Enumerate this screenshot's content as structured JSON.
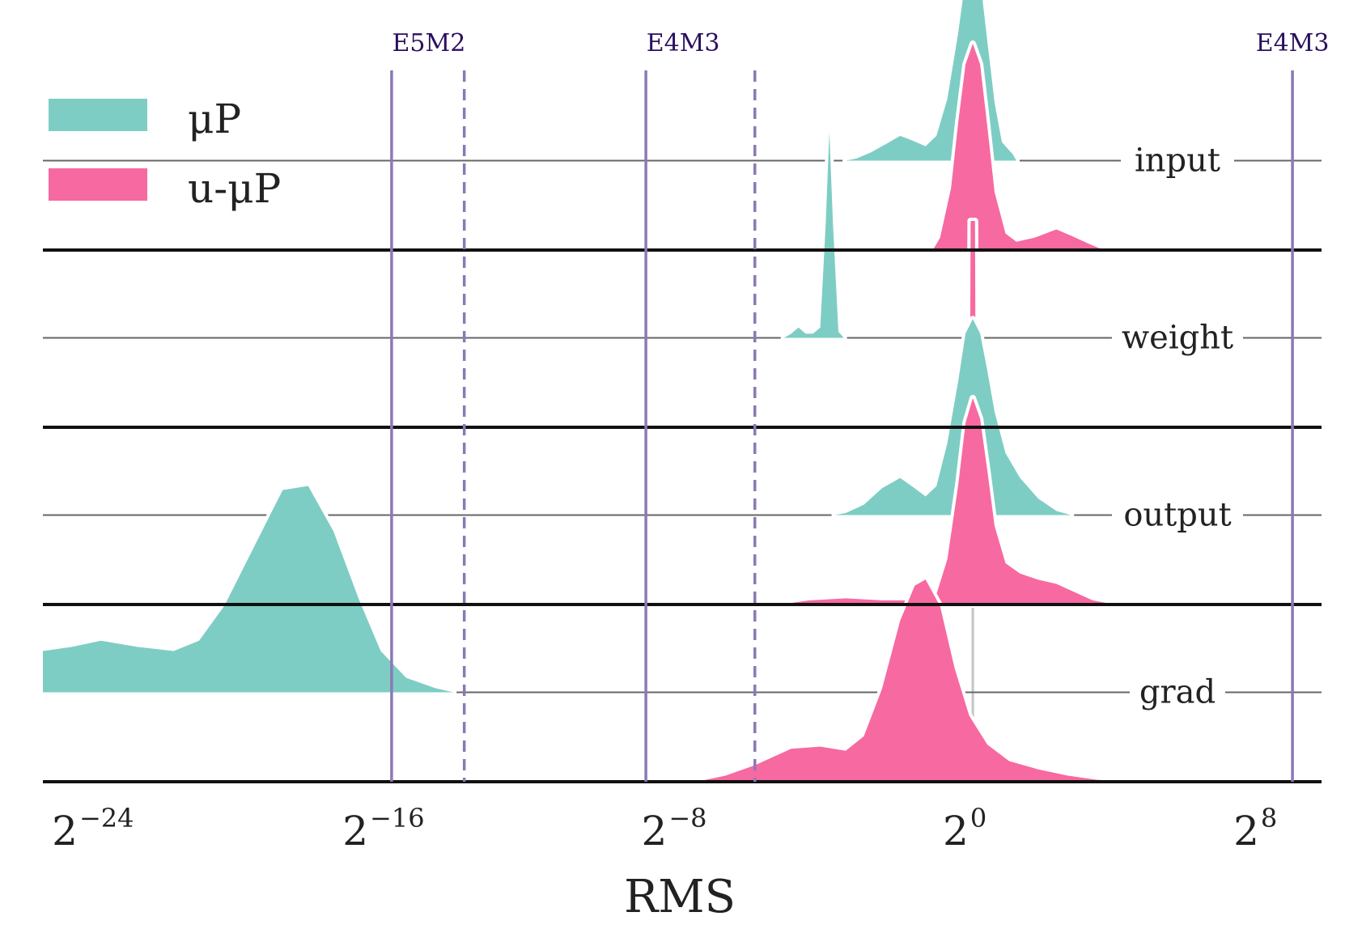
{
  "chart_data": {
    "type": "area",
    "title": "",
    "xlabel": "RMS",
    "ylabel": "",
    "x_scale": "log2",
    "xlim_log2": [
      -25.6,
      9.6
    ],
    "x_ticks": [
      {
        "base": "2",
        "exp": "−24",
        "log2": -24
      },
      {
        "base": "2",
        "exp": "−16",
        "log2": -16
      },
      {
        "base": "2",
        "exp": "−8",
        "log2": -8
      },
      {
        "base": "2",
        "exp": "0",
        "log2": 0
      },
      {
        "base": "2",
        "exp": "8",
        "log2": 8
      }
    ],
    "grid": false,
    "legend": {
      "placement": "top-left",
      "entries": [
        {
          "name": "μP",
          "color": "#7ecdc4"
        },
        {
          "name": "u-μP",
          "color": "#f769a1"
        }
      ]
    },
    "format_lines": {
      "color": "#8b79b6",
      "label_color": "#2b0f5e",
      "lines": [
        {
          "name": "E5M2",
          "log2": -16,
          "style": "solid",
          "label": "E5M2"
        },
        {
          "name": "E5M2-subnormal",
          "log2": -14,
          "style": "dashed",
          "label": ""
        },
        {
          "name": "E4M3",
          "log2": -9,
          "style": "solid",
          "label": "E4M3"
        },
        {
          "name": "E4M3-subnormal",
          "log2": -6,
          "style": "dashed",
          "label": ""
        },
        {
          "name": "E4M3-max",
          "log2": 8.8,
          "style": "solid",
          "label": "E4M3"
        }
      ]
    },
    "rows": [
      {
        "label": "input",
        "series": [
          {
            "name": "μP",
            "points": [
              [
                -3.5,
                0.0
              ],
              [
                -3.2,
                0.01
              ],
              [
                -2.8,
                0.04
              ],
              [
                -2.3,
                0.09
              ],
              [
                -2.0,
                0.12
              ],
              [
                -1.7,
                0.1
              ],
              [
                -1.3,
                0.07
              ],
              [
                -1.0,
                0.12
              ],
              [
                -0.7,
                0.3
              ],
              [
                -0.4,
                0.62
              ],
              [
                -0.2,
                0.88
              ],
              [
                0.0,
                0.98
              ],
              [
                0.2,
                0.88
              ],
              [
                0.4,
                0.58
              ],
              [
                0.6,
                0.28
              ],
              [
                0.8,
                0.09
              ],
              [
                1.1,
                0.03
              ],
              [
                1.2,
                0.0
              ]
            ]
          },
          {
            "name": "u-μP",
            "points": [
              [
                -1.1,
                0.0
              ],
              [
                -0.9,
                0.06
              ],
              [
                -0.6,
                0.3
              ],
              [
                -0.4,
                0.62
              ],
              [
                -0.2,
                0.9
              ],
              [
                0.0,
                1.0
              ],
              [
                0.2,
                0.9
              ],
              [
                0.4,
                0.6
              ],
              [
                0.6,
                0.28
              ],
              [
                0.9,
                0.08
              ],
              [
                1.2,
                0.04
              ],
              [
                1.7,
                0.06
              ],
              [
                2.3,
                0.1
              ],
              [
                2.7,
                0.07
              ],
              [
                3.2,
                0.03
              ],
              [
                3.6,
                0.0
              ]
            ]
          }
        ]
      },
      {
        "label": "weight",
        "series": [
          {
            "name": "μP",
            "points": [
              [
                -5.2,
                0.0
              ],
              [
                -5.0,
                0.02
              ],
              [
                -4.8,
                0.05
              ],
              [
                -4.6,
                0.02
              ],
              [
                -4.4,
                0.02
              ],
              [
                -4.2,
                0.05
              ],
              [
                -4.05,
                0.55
              ],
              [
                -3.95,
                1.0
              ],
              [
                -3.85,
                0.55
              ],
              [
                -3.7,
                0.03
              ],
              [
                -3.55,
                0.0
              ]
            ]
          },
          {
            "name": "u-μP",
            "points": [
              [
                -0.08,
                0.0
              ],
              [
                -0.06,
                1.0
              ],
              [
                0.06,
                1.0
              ],
              [
                0.08,
                0.0
              ]
            ]
          }
        ]
      },
      {
        "label": "output",
        "series": [
          {
            "name": "μP",
            "points": [
              [
                -3.8,
                0.0
              ],
              [
                -3.5,
                0.01
              ],
              [
                -3.0,
                0.05
              ],
              [
                -2.5,
                0.13
              ],
              [
                -2.0,
                0.18
              ],
              [
                -1.6,
                0.13
              ],
              [
                -1.3,
                0.09
              ],
              [
                -1.0,
                0.14
              ],
              [
                -0.7,
                0.35
              ],
              [
                -0.4,
                0.65
              ],
              [
                -0.2,
                0.88
              ],
              [
                0.0,
                0.95
              ],
              [
                0.2,
                0.88
              ],
              [
                0.4,
                0.7
              ],
              [
                0.6,
                0.5
              ],
              [
                0.9,
                0.3
              ],
              [
                1.3,
                0.18
              ],
              [
                1.8,
                0.08
              ],
              [
                2.3,
                0.02
              ],
              [
                2.7,
                0.0
              ]
            ]
          },
          {
            "name": "u-μP",
            "points": [
              [
                -5.3,
                0.0
              ],
              [
                -4.5,
                0.02
              ],
              [
                -3.5,
                0.03
              ],
              [
                -2.5,
                0.02
              ],
              [
                -1.5,
                0.02
              ],
              [
                -1.0,
                0.05
              ],
              [
                -0.7,
                0.22
              ],
              [
                -0.4,
                0.58
              ],
              [
                -0.2,
                0.88
              ],
              [
                0.0,
                1.0
              ],
              [
                0.2,
                0.9
              ],
              [
                0.4,
                0.65
              ],
              [
                0.6,
                0.38
              ],
              [
                0.9,
                0.2
              ],
              [
                1.3,
                0.15
              ],
              [
                1.8,
                0.12
              ],
              [
                2.3,
                0.1
              ],
              [
                2.8,
                0.06
              ],
              [
                3.3,
                0.02
              ],
              [
                3.9,
                0.0
              ]
            ]
          }
        ]
      },
      {
        "label": "grad",
        "series": [
          {
            "name": "μP",
            "points": [
              [
                -25.6,
                0.2
              ],
              [
                -24.8,
                0.22
              ],
              [
                -24.0,
                0.25
              ],
              [
                -23.0,
                0.22
              ],
              [
                -22.0,
                0.2
              ],
              [
                -21.3,
                0.25
              ],
              [
                -20.6,
                0.42
              ],
              [
                -19.8,
                0.7
              ],
              [
                -19.0,
                0.98
              ],
              [
                -18.3,
                1.0
              ],
              [
                -17.6,
                0.78
              ],
              [
                -16.9,
                0.45
              ],
              [
                -16.3,
                0.2
              ],
              [
                -15.6,
                0.07
              ],
              [
                -14.8,
                0.02
              ],
              [
                -14.3,
                0.0
              ]
            ]
          },
          {
            "name": "u-μP",
            "points": [
              [
                -7.6,
                0.0
              ],
              [
                -6.8,
                0.03
              ],
              [
                -6.0,
                0.08
              ],
              [
                -5.0,
                0.16
              ],
              [
                -4.2,
                0.17
              ],
              [
                -3.5,
                0.15
              ],
              [
                -3.0,
                0.22
              ],
              [
                -2.5,
                0.45
              ],
              [
                -2.0,
                0.78
              ],
              [
                -1.6,
                0.95
              ],
              [
                -1.3,
                0.98
              ],
              [
                -0.9,
                0.85
              ],
              [
                -0.5,
                0.55
              ],
              [
                -0.1,
                0.32
              ],
              [
                0.4,
                0.18
              ],
              [
                1.0,
                0.1
              ],
              [
                1.8,
                0.06
              ],
              [
                2.6,
                0.03
              ],
              [
                3.4,
                0.01
              ],
              [
                4.2,
                0.0
              ]
            ]
          }
        ]
      }
    ],
    "reference_line": {
      "log2": 0,
      "color": "#c4c4c4"
    }
  }
}
